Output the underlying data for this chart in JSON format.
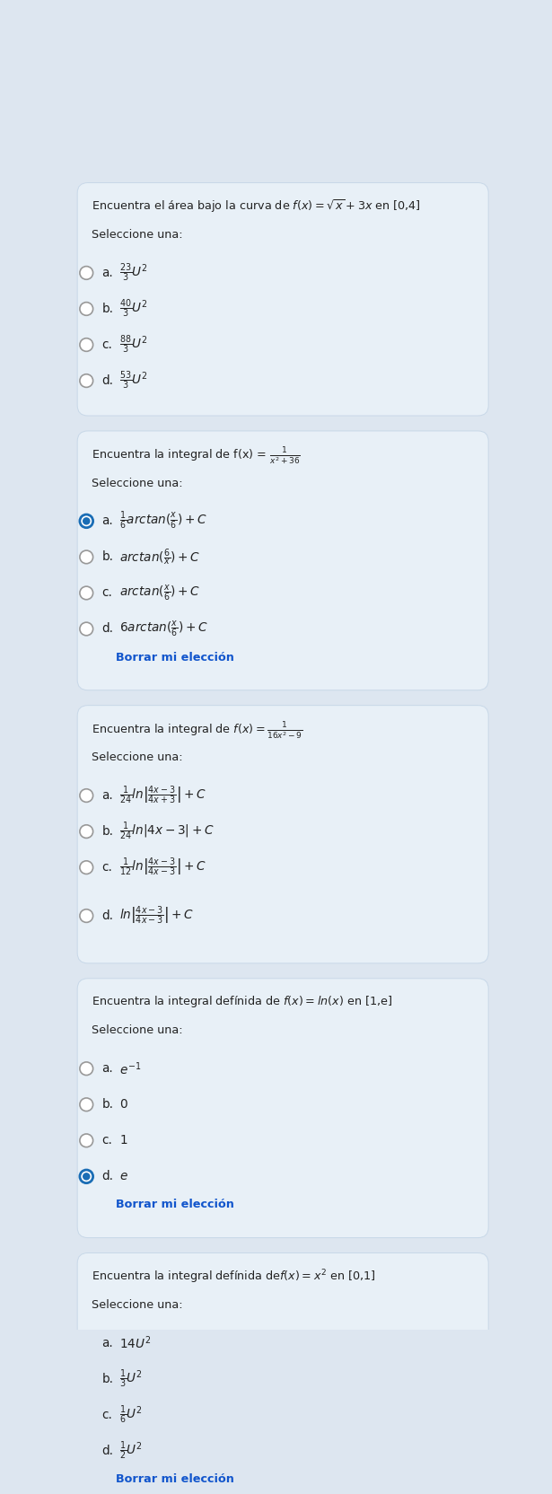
{
  "bg_color": "#dde6f0",
  "card_color": "#e8f0f7",
  "card_border_color": "#c8d8e8",
  "text_color": "#222222",
  "link_color": "#1155cc",
  "radio_empty_color": "#999999",
  "radio_filled_color": "#1a6db5",
  "fig_width": 6.15,
  "fig_height": 16.64,
  "questions": [
    {
      "q_plain": "Encuentra el área bajo la curva de ",
      "q_math": "$f(x) = \\sqrt{x} + 3x$",
      "q_end": " en [0,4]",
      "subtext": "Seleccione una:",
      "options": [
        {
          "label": "a.",
          "text": "$\\frac{23}{3}U^2$",
          "selected": false
        },
        {
          "label": "b.",
          "text": "$\\frac{40}{3}U^2$",
          "selected": false
        },
        {
          "label": "c.",
          "text": "$\\frac{88}{3}U^2$",
          "selected": false
        },
        {
          "label": "d.",
          "text": "$\\frac{53}{3}U^2$",
          "selected": false
        }
      ],
      "show_borrar": false,
      "extra_gaps": []
    },
    {
      "q_plain": "Encuentra la integral de f(x) = $\\frac{1}{x^2+36}$",
      "q_math": "",
      "q_end": "",
      "subtext": "Seleccione una:",
      "options": [
        {
          "label": "a.",
          "text": "$\\frac{1}{6}arctan(\\frac{x}{6}) + C$",
          "selected": true
        },
        {
          "label": "b.",
          "text": "$arctan(\\frac{6}{x}) + C$",
          "selected": false
        },
        {
          "label": "c.",
          "text": "$arctan(\\frac{x}{6}) + C$",
          "selected": false
        },
        {
          "label": "d.",
          "text": "$6arctan(\\frac{x}{6}) + C$",
          "selected": false
        }
      ],
      "show_borrar": true,
      "extra_gaps": []
    },
    {
      "q_plain": "Encuentra la integral de ",
      "q_math": "$f(x) = \\frac{1}{16x^2-9}$",
      "q_end": "",
      "subtext": "Seleccione una:",
      "options": [
        {
          "label": "a.",
          "text": "$\\frac{1}{24}ln\\left|\\frac{4x-3}{4x+3}\\right| + C$",
          "selected": false
        },
        {
          "label": "b.",
          "text": "$\\frac{1}{24}ln|4x - 3| + C$",
          "selected": false
        },
        {
          "label": "c.",
          "text": "$\\frac{1}{12}ln\\left|\\frac{4x-3}{4x-3}\\right| + C$",
          "selected": false
        },
        {
          "label": "d.",
          "text": "$ln\\left|\\frac{4x-3}{4x-3}\\right| + C$",
          "selected": false
        }
      ],
      "show_borrar": false,
      "extra_gaps": [
        2,
        3
      ]
    },
    {
      "q_plain": "Encuentra la integral defínida de ",
      "q_math": "$f(x) = ln(x)$",
      "q_end": " en [1,e]",
      "subtext": "Seleccione una:",
      "options": [
        {
          "label": "a.",
          "text": "$e^{-1}$",
          "selected": false
        },
        {
          "label": "b.",
          "text": "$0$",
          "selected": false
        },
        {
          "label": "c.",
          "text": "$1$",
          "selected": false
        },
        {
          "label": "d.",
          "text": "$e$",
          "selected": true
        }
      ],
      "show_borrar": true,
      "extra_gaps": []
    },
    {
      "q_plain": "Encuentra la integral defínida de",
      "q_math": "$f(x) = x^2$",
      "q_end": " en [0,1]",
      "subtext": "Seleccione una:",
      "options": [
        {
          "label": "a.",
          "text": "$14U^2$",
          "selected": true
        },
        {
          "label": "b.",
          "text": "$\\frac{1}{3}U^2$",
          "selected": false
        },
        {
          "label": "c.",
          "text": "$\\frac{1}{6}U^2$",
          "selected": false
        },
        {
          "label": "d.",
          "text": "$\\frac{1}{2}U^2$",
          "selected": false
        }
      ],
      "show_borrar": true,
      "extra_gaps": []
    }
  ]
}
